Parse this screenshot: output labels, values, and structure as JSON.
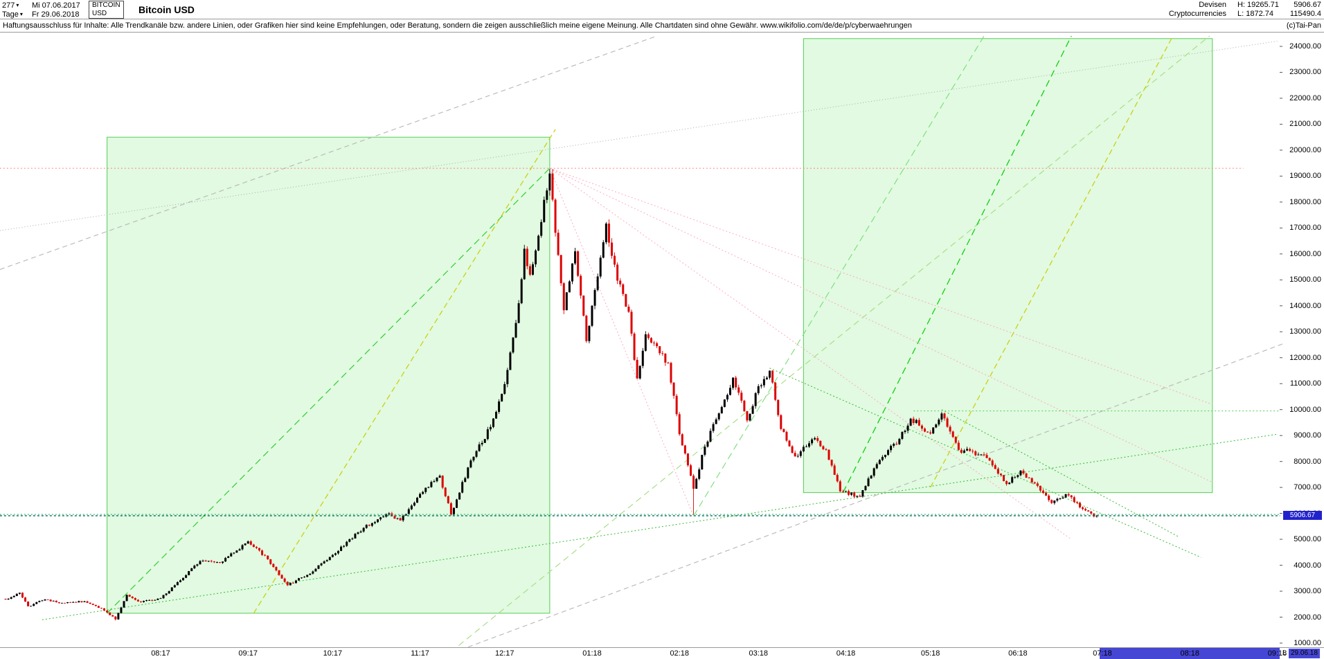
{
  "header": {
    "bars_count": "277",
    "period_label": "Tage",
    "date_from": "Mi 07.06.2017",
    "date_to": "Fr 29.06.2018",
    "symbol": "BITCOIN",
    "currency": "USD",
    "title": "Bitcoin USD",
    "category_line1": "Devisen",
    "category_line2": "Cryptocurrencies",
    "high_label": "H: 19265.71",
    "low_label": "L: 1872.74",
    "last_price": "5906.67",
    "volume": "115490.4",
    "copyright": "(c)Tai-Pan"
  },
  "icons": {
    "chevron_down": "▾"
  },
  "disclaimer": "Haftungsausschluss für Inhalte: Alle Trendkanäle bzw. andere Linien, oder Grafiken hier sind keine Empfehlungen, oder Beratung, sondern die zeigen ausschließlich meine eigene Meinung. Alle Chartdaten sind ohne Gewähr.  www.wikifolio.com/de/de/p/cyberwaehrungen",
  "ui": {
    "price_tag_bg": "#2222cc",
    "price_tag_text": "#ffffff",
    "future_strip_bg": "#4646d5"
  },
  "y_axis": {
    "min": 1000,
    "max": 24000,
    "step": 1000,
    "price_tag": "5906.67"
  },
  "x_axis": {
    "labels": [
      {
        "text": "08:17",
        "date": "2017-08-01"
      },
      {
        "text": "09:17",
        "date": "2017-09-01"
      },
      {
        "text": "10:17",
        "date": "2017-10-01"
      },
      {
        "text": "11:17",
        "date": "2017-11-01"
      },
      {
        "text": "12:17",
        "date": "2017-12-01"
      },
      {
        "text": "01:18",
        "date": "2018-01-01"
      },
      {
        "text": "02:18",
        "date": "2018-02-01"
      },
      {
        "text": "03:18",
        "date": "2018-03-01"
      },
      {
        "text": "04:18",
        "date": "2018-04-01"
      },
      {
        "text": "05:18",
        "date": "2018-05-01"
      },
      {
        "text": "06:18",
        "date": "2018-06-01"
      },
      {
        "text": "07:18",
        "date": "2018-07-01"
      },
      {
        "text": "08:18",
        "date": "2018-08-01"
      },
      {
        "text": "09:18",
        "date": "2018-09-01"
      }
    ],
    "future_start": "2018-06-30",
    "low_marker": "L",
    "last_date_label": "29.06.18"
  },
  "chart_data": {
    "type": "candlestick",
    "title": "Bitcoin USD",
    "x_range": [
      "2017-06-07",
      "2018-09-02"
    ],
    "ylim": [
      1000,
      24000
    ],
    "grid": false,
    "last_price": 5906.67,
    "colors": {
      "up": "#000000",
      "down": "#dd0000"
    },
    "anchors": [
      [
        "2017-06-07",
        2680
      ],
      [
        "2017-06-12",
        2940
      ],
      [
        "2017-06-15",
        2420
      ],
      [
        "2017-06-21",
        2680
      ],
      [
        "2017-06-27",
        2550
      ],
      [
        "2017-07-05",
        2610
      ],
      [
        "2017-07-11",
        2340
      ],
      [
        "2017-07-16",
        1915
      ],
      [
        "2017-07-20",
        2860
      ],
      [
        "2017-07-25",
        2580
      ],
      [
        "2017-08-01",
        2730
      ],
      [
        "2017-08-08",
        3420
      ],
      [
        "2017-08-15",
        4160
      ],
      [
        "2017-08-22",
        4090
      ],
      [
        "2017-09-01",
        4920
      ],
      [
        "2017-09-08",
        4230
      ],
      [
        "2017-09-15",
        3230
      ],
      [
        "2017-09-22",
        3630
      ],
      [
        "2017-10-01",
        4400
      ],
      [
        "2017-10-12",
        5440
      ],
      [
        "2017-10-21",
        6000
      ],
      [
        "2017-10-25",
        5730
      ],
      [
        "2017-11-01",
        6750
      ],
      [
        "2017-11-08",
        7450
      ],
      [
        "2017-11-12",
        5950
      ],
      [
        "2017-11-19",
        8040
      ],
      [
        "2017-11-26",
        9330
      ],
      [
        "2017-12-01",
        10980
      ],
      [
        "2017-12-06",
        14100
      ],
      [
        "2017-12-08",
        16200
      ],
      [
        "2017-12-10",
        15200
      ],
      [
        "2017-12-13",
        16700
      ],
      [
        "2017-12-17",
        19100
      ],
      [
        "2017-12-22",
        13830
      ],
      [
        "2017-12-26",
        16100
      ],
      [
        "2017-12-30",
        12640
      ],
      [
        "2018-01-06",
        17170
      ],
      [
        "2018-01-10",
        14970
      ],
      [
        "2018-01-14",
        13770
      ],
      [
        "2018-01-17",
        11200
      ],
      [
        "2018-01-20",
        12900
      ],
      [
        "2018-01-28",
        11800
      ],
      [
        "2018-02-01",
        9050
      ],
      [
        "2018-02-06",
        6950
      ],
      [
        "2018-02-10",
        8570
      ],
      [
        "2018-02-16",
        10100
      ],
      [
        "2018-02-20",
        11230
      ],
      [
        "2018-02-25",
        9580
      ],
      [
        "2018-03-01",
        10900
      ],
      [
        "2018-03-05",
        11500
      ],
      [
        "2018-03-09",
        9250
      ],
      [
        "2018-03-14",
        8200
      ],
      [
        "2018-03-21",
        8900
      ],
      [
        "2018-03-25",
        8450
      ],
      [
        "2018-03-30",
        6850
      ],
      [
        "2018-04-06",
        6650
      ],
      [
        "2018-04-12",
        7900
      ],
      [
        "2018-04-20",
        8870
      ],
      [
        "2018-04-24",
        9650
      ],
      [
        "2018-05-01",
        9080
      ],
      [
        "2018-05-05",
        9850
      ],
      [
        "2018-05-11",
        8450
      ],
      [
        "2018-05-20",
        8250
      ],
      [
        "2018-05-28",
        7130
      ],
      [
        "2018-06-02",
        7650
      ],
      [
        "2018-06-10",
        6790
      ],
      [
        "2018-06-13",
        6400
      ],
      [
        "2018-06-18",
        6740
      ],
      [
        "2018-06-24",
        6170
      ],
      [
        "2018-06-28",
        5880
      ],
      [
        "2018-06-29",
        5906.67
      ]
    ],
    "extremes": {
      "2017-07-16": {
        "low": 1872.74
      },
      "2017-12-17": {
        "high": 19265.71
      },
      "2018-01-06": {
        "high": 17230
      },
      "2018-02-06": {
        "low": 5951
      }
    },
    "boxes": [
      {
        "name": "trend-box-2017",
        "x1": "2017-07-13",
        "x2": "2017-12-17",
        "p1": 2150,
        "p2": 20500,
        "fill": "rgba(170,240,170,0.35)",
        "stroke": "#55cc55"
      },
      {
        "name": "trend-box-2018",
        "x1": "2018-03-17",
        "x2": "2018-08-09",
        "p1": 6800,
        "p2": 24300,
        "fill": "rgba(170,240,170,0.35)",
        "stroke": "#55cc55"
      }
    ],
    "lines": [
      {
        "name": "gray-channel-upper",
        "x1": "2017-06-05",
        "p1": 15400,
        "x2": "2018-01-24",
        "p2": 24400,
        "color": "#bbbbbb",
        "dash": "7 5",
        "w": 1.2
      },
      {
        "name": "gray-channel-lower",
        "x1": "2017-11-07",
        "p1": 400,
        "x2": "2018-09-17",
        "p2": 13100,
        "color": "#bbbbbb",
        "dash": "7 5",
        "w": 1.2
      },
      {
        "name": "gray-dotted-longterm",
        "x1": "2017-06-05",
        "p1": 16900,
        "x2": "2018-09-01",
        "p2": 24200,
        "color": "#aaaaaa",
        "dash": "1 3",
        "w": 1
      },
      {
        "name": "longterm-green-dashed",
        "x1": "2017-11-09",
        "p1": 400,
        "x2": "2018-08-08",
        "p2": 24400,
        "color": "#aade87",
        "dash": "9 6",
        "w": 1.2
      },
      {
        "name": "uptrend-green-2017",
        "x1": "2017-07-13",
        "p1": 2150,
        "x2": "2017-12-17",
        "p2": 19300,
        "color": "#33cc33",
        "dash": "10 6",
        "w": 1.2
      },
      {
        "name": "uptrend-yellow-2017",
        "x1": "2017-09-03",
        "p1": 2150,
        "x2": "2017-12-19",
        "p2": 20800,
        "color": "#cccc00",
        "dash": "8 5",
        "w": 1.2
      },
      {
        "name": "uptrend-green-2018-a",
        "x1": "2018-03-31",
        "p1": 6800,
        "x2": "2018-06-20",
        "p2": 24400,
        "color": "#00cc00",
        "dash": "10 6",
        "w": 1.2
      },
      {
        "name": "uptrend-green-2018-b",
        "x1": "2018-02-06",
        "p1": 5900,
        "x2": "2018-05-20",
        "p2": 24400,
        "color": "#77dd77",
        "dash": "10 6",
        "w": 1.1
      },
      {
        "name": "uptrend-yellow-2018",
        "x1": "2018-05-01",
        "p1": 7000,
        "x2": "2018-07-26",
        "p2": 24400,
        "color": "#cccc00",
        "dash": "8 5",
        "w": 1.2
      },
      {
        "name": "fan-pink-1",
        "x1": "2017-12-17",
        "p1": 19300,
        "x2": "2018-08-09",
        "p2": 10200,
        "color": "#ffaabb",
        "dash": "2 3",
        "w": 1
      },
      {
        "name": "fan-pink-2",
        "x1": "2017-12-17",
        "p1": 19300,
        "x2": "2018-08-09",
        "p2": 7200,
        "color": "#ffaabb",
        "dash": "2 3",
        "w": 1
      },
      {
        "name": "fan-pink-3",
        "x1": "2017-12-17",
        "p1": 19300,
        "x2": "2018-06-20",
        "p2": 5000,
        "color": "#ffaabb",
        "dash": "2 3",
        "w": 1
      },
      {
        "name": "fan-pink-4",
        "x1": "2017-12-17",
        "p1": 19300,
        "x2": "2018-02-06",
        "p2": 5900,
        "color": "#ffaabb",
        "dash": "2 3",
        "w": 1
      },
      {
        "name": "support-green-long",
        "x1": "2017-06-20",
        "p1": 1900,
        "x2": "2018-09-01",
        "p2": 9050,
        "color": "#33bb33",
        "dash": "2 3",
        "w": 1
      },
      {
        "name": "downtrend-green-1",
        "x1": "2018-03-05",
        "p1": 11600,
        "x2": "2018-08-05",
        "p2": 4300,
        "color": "#33bb33",
        "dash": "2 3",
        "w": 1
      },
      {
        "name": "downtrend-green-2",
        "x1": "2018-05-05",
        "p1": 10000,
        "x2": "2018-07-28",
        "p2": 5100,
        "color": "#33bb33",
        "dash": "2 3",
        "w": 1
      },
      {
        "name": "resistance-10000",
        "x1": "2018-04-25",
        "p1": 9950,
        "x2": "2018-09-02",
        "p2": 9950,
        "color": "#55cc55",
        "dash": "2 3",
        "w": 1
      },
      {
        "name": "support-5950",
        "x1": "2017-06-05",
        "p1": 5960,
        "x2": "2018-09-02",
        "p2": 5960,
        "color": "#22aa55",
        "dash": "2 3",
        "w": 1,
        "layer": "front"
      },
      {
        "name": "high-resistance-19300",
        "x1": "2017-06-05",
        "p1": 19300,
        "x2": "2018-08-20",
        "p2": 19300,
        "color": "#ff8080",
        "dash": "2 3",
        "w": 1,
        "layer": "front"
      },
      {
        "name": "current-price-line",
        "x1": "2017-06-05",
        "p1": 5906.67,
        "x2": "2018-09-02",
        "p2": 5906.67,
        "color": "#006868",
        "dash": "3 3",
        "w": 1.4,
        "layer": "front"
      }
    ]
  }
}
